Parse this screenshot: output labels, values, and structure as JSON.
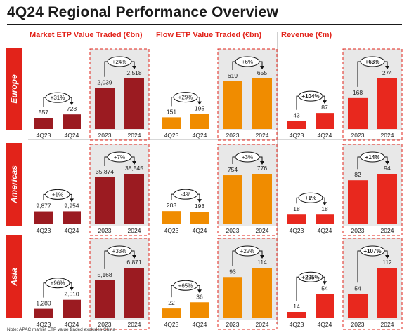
{
  "title": "4Q24 Regional Performance Overview",
  "footnote": "Note: APAC market ETP value traded excludes China",
  "colors": {
    "accent": "#e2231a",
    "market_bar": "#9b1b21",
    "flow_bar": "#f08c00",
    "revenue_bar": "#e8281e",
    "panel_bg": "#e8e8e8",
    "text": "#222222"
  },
  "columns": [
    {
      "label": "Market ETP Value Traded (€bn)"
    },
    {
      "label": "Flow ETP Value Traded (€bn)"
    },
    {
      "label": "Revenue (€m)"
    }
  ],
  "regions": [
    {
      "label": "Europe"
    },
    {
      "label": "Americas"
    },
    {
      "label": "Asia"
    }
  ],
  "chart_data": [
    {
      "type": "bar",
      "metric": "Market ETP Value Traded (€bn)",
      "region": "Europe",
      "quarterly": {
        "categories": [
          "4Q23",
          "4Q24"
        ],
        "values": [
          557,
          728
        ],
        "labels": [
          "557",
          "728"
        ],
        "change": "+31%"
      },
      "annual": {
        "categories": [
          "2023",
          "2024"
        ],
        "values": [
          2039,
          2518
        ],
        "labels": [
          "2,039",
          "2,518"
        ],
        "change": "+24%"
      }
    },
    {
      "type": "bar",
      "metric": "Flow ETP Value Traded (€bn)",
      "region": "Europe",
      "quarterly": {
        "categories": [
          "4Q23",
          "4Q24"
        ],
        "values": [
          151,
          195
        ],
        "labels": [
          "151",
          "195"
        ],
        "change": "+29%"
      },
      "annual": {
        "categories": [
          "2023",
          "2024"
        ],
        "values": [
          619,
          655
        ],
        "labels": [
          "619",
          "655"
        ],
        "change": "+6%"
      }
    },
    {
      "type": "bar",
      "metric": "Revenue (€m)",
      "region": "Europe",
      "quarterly": {
        "categories": [
          "4Q23",
          "4Q24"
        ],
        "values": [
          43,
          87
        ],
        "labels": [
          "43",
          "87"
        ],
        "change": "+104%"
      },
      "annual": {
        "categories": [
          "2023",
          "2024"
        ],
        "values": [
          168,
          274
        ],
        "labels": [
          "168",
          "274"
        ],
        "change": "+63%"
      }
    },
    {
      "type": "bar",
      "metric": "Market ETP Value Traded (€bn)",
      "region": "Americas",
      "quarterly": {
        "categories": [
          "4Q23",
          "4Q24"
        ],
        "values": [
          9877,
          9954
        ],
        "labels": [
          "9,877",
          "9,954"
        ],
        "change": "+1%"
      },
      "annual": {
        "categories": [
          "2023",
          "2024"
        ],
        "values": [
          35874,
          38545
        ],
        "labels": [
          "35,874",
          "38,545"
        ],
        "change": "+7%"
      }
    },
    {
      "type": "bar",
      "metric": "Flow ETP Value Traded (€bn)",
      "region": "Americas",
      "quarterly": {
        "categories": [
          "4Q23",
          "4Q24"
        ],
        "values": [
          203,
          193
        ],
        "labels": [
          "203",
          "193"
        ],
        "change": "-4%"
      },
      "annual": {
        "categories": [
          "2023",
          "2024"
        ],
        "values": [
          754,
          776
        ],
        "labels": [
          "754",
          "776"
        ],
        "change": "+3%"
      }
    },
    {
      "type": "bar",
      "metric": "Revenue (€m)",
      "region": "Americas",
      "quarterly": {
        "categories": [
          "4Q23",
          "4Q24"
        ],
        "values": [
          18,
          18
        ],
        "labels": [
          "18",
          "18"
        ],
        "change": "+1%"
      },
      "annual": {
        "categories": [
          "2023",
          "2024"
        ],
        "values": [
          82,
          94
        ],
        "labels": [
          "82",
          "94"
        ],
        "change": "+14%"
      }
    },
    {
      "type": "bar",
      "metric": "Market ETP Value Traded (€bn)",
      "region": "Asia",
      "quarterly": {
        "categories": [
          "4Q23",
          "4Q24"
        ],
        "values": [
          1280,
          2510
        ],
        "labels": [
          "1,280",
          "2,510"
        ],
        "change": "+96%"
      },
      "annual": {
        "categories": [
          "2023",
          "2024"
        ],
        "values": [
          5168,
          6871
        ],
        "labels": [
          "5,168",
          "6,871"
        ],
        "change": "+33%"
      }
    },
    {
      "type": "bar",
      "metric": "Flow ETP Value Traded (€bn)",
      "region": "Asia",
      "quarterly": {
        "categories": [
          "4Q23",
          "4Q24"
        ],
        "values": [
          22,
          36
        ],
        "labels": [
          "22",
          "36"
        ],
        "change": "+65%"
      },
      "annual": {
        "categories": [
          "2023",
          "2024"
        ],
        "values": [
          93,
          114
        ],
        "labels": [
          "93",
          "114"
        ],
        "change": "+22%"
      }
    },
    {
      "type": "bar",
      "metric": "Revenue (€m)",
      "region": "Asia",
      "quarterly": {
        "categories": [
          "4Q23",
          "4Q24"
        ],
        "values": [
          14,
          54
        ],
        "labels": [
          "14",
          "54"
        ],
        "change": "+295%"
      },
      "annual": {
        "categories": [
          "2023",
          "2024"
        ],
        "values": [
          54,
          112
        ],
        "labels": [
          "54",
          "112"
        ],
        "change": "+107%"
      }
    }
  ]
}
